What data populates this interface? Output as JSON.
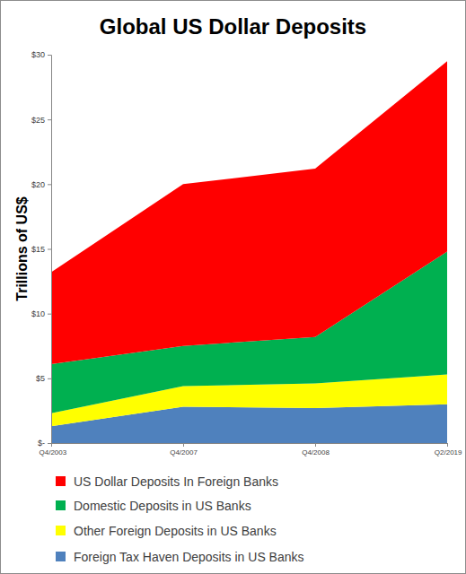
{
  "chart_data": {
    "type": "area",
    "title": "Global US Dollar Deposits",
    "y_label": "Trillions of US$",
    "stacked": true,
    "grid": false,
    "legend": "bottom",
    "categories": [
      "Q4/2003",
      "Q4/2007",
      "Q4/2008",
      "Q2/2019"
    ],
    "series": [
      {
        "name": "US Dollar Deposits In Foreign Banks",
        "color": "#ff0000",
        "values": [
          7.1,
          12.5,
          13.0,
          14.7
        ]
      },
      {
        "name": "Domestic Deposits in US Banks",
        "color": "#00b050",
        "values": [
          3.8,
          3.1,
          3.6,
          9.5
        ]
      },
      {
        "name": "Other Foreign Deposits in US Banks",
        "color": "#ffff00",
        "values": [
          1.0,
          1.6,
          1.9,
          2.3
        ]
      },
      {
        "name": "Foreign Tax Haven Deposits in US Banks",
        "color": "#4f81bd",
        "values": [
          1.3,
          2.8,
          2.7,
          3.0
        ]
      }
    ],
    "ylim": [
      0,
      30
    ],
    "yticks": [
      {
        "value": 0,
        "label": "$-"
      },
      {
        "value": 5,
        "label": "$5"
      },
      {
        "value": 10,
        "label": "$10"
      },
      {
        "value": 15,
        "label": "$15"
      },
      {
        "value": 20,
        "label": "$20"
      },
      {
        "value": 25,
        "label": "$25"
      },
      {
        "value": 30,
        "label": "$30"
      }
    ]
  }
}
